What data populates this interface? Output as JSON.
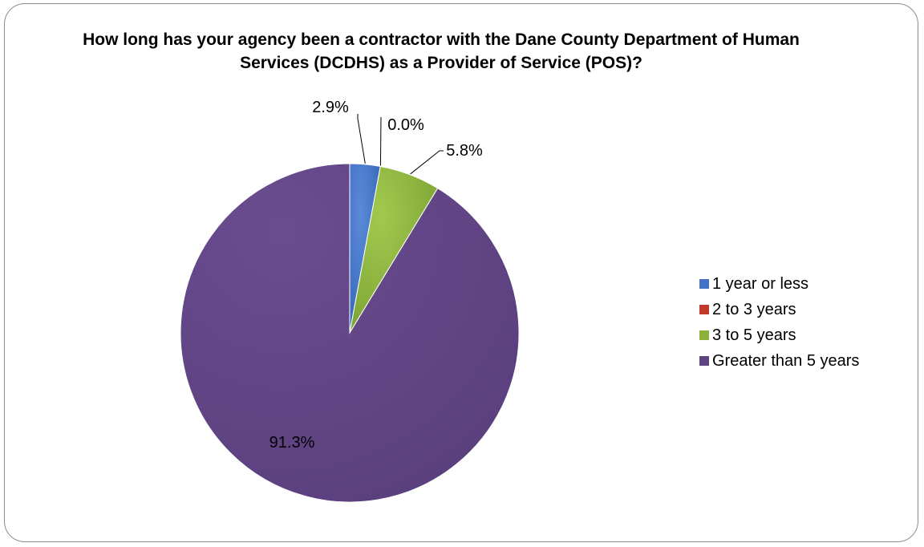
{
  "chart_data": {
    "type": "pie",
    "title": "How long has your agency been a contractor with the Dane County Department of Human Services (DCDHS) as a Provider of Service (POS)?",
    "categories": [
      "1 year or less",
      "2 to 3 years",
      "3 to 5 years",
      "Greater than 5 years"
    ],
    "values": [
      2.9,
      0.0,
      5.8,
      91.3
    ],
    "data_labels": [
      "2.9%",
      "0.0%",
      "5.8%",
      "91.3%"
    ],
    "colors": [
      "#4472c4",
      "#c0392b",
      "#8db23c",
      "#5e4481"
    ],
    "legend_position": "right"
  }
}
